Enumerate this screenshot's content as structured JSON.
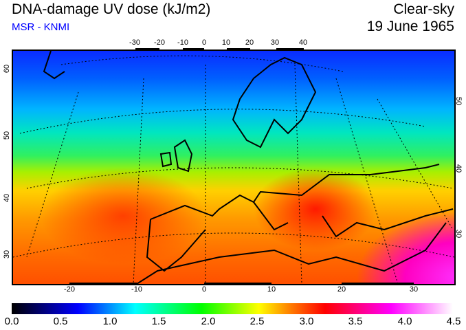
{
  "header": {
    "title": "DNA-damage UV dose (kJ/m2)",
    "subtitle": "MSR - KNMI",
    "condition": "Clear-sky",
    "date": "19 June 1965"
  },
  "map": {
    "top_lon_ticks": [
      "-30",
      "-20",
      "-10",
      "0",
      "10",
      "20",
      "30",
      "40"
    ],
    "bottom_lon_ticks": [
      "-20",
      "-10",
      "0",
      "10",
      "20",
      "30"
    ],
    "left_lat_ticks": [
      "60",
      "50",
      "40",
      "30"
    ],
    "right_lat_ticks": [
      "50",
      "40",
      "30"
    ]
  },
  "colorbar": {
    "ticks": [
      "0.0",
      "0.5",
      "1.0",
      "1.5",
      "2.0",
      "2.5",
      "3.0",
      "3.5",
      "4.0",
      "4.5"
    ],
    "unit": "kJ/m2",
    "min": 0.0,
    "max": 4.5
  }
}
